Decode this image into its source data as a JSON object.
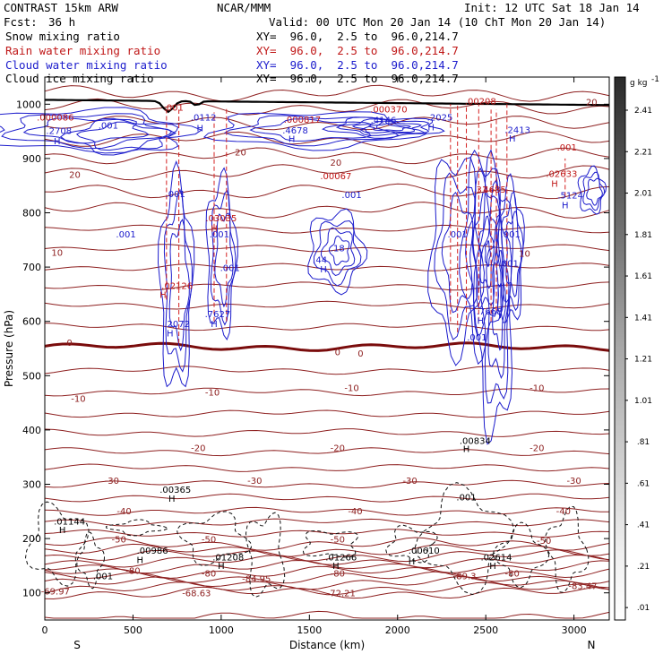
{
  "header": {
    "model": "CONTRAST 15km ARW",
    "org": "NCAR/MMM",
    "init": "Init: 12 UTC Sat 18 Jan 14",
    "fcst_label": "Fcst:",
    "fcst_value": "36 h",
    "valid": "Valid: 00 UTC Mon 20 Jan 14 (10 ChT Mon 20 Jan 14)"
  },
  "fields": [
    {
      "name": "Snow mixing ratio",
      "xy": "XY=  96.0,  2.5 to  96.0,214.7",
      "color": "#000000"
    },
    {
      "name": "Rain water mixing ratio",
      "xy": "XY=  96.0,  2.5 to  96.0,214.7",
      "color": "#c01818"
    },
    {
      "name": "Cloud water mixing ratio",
      "xy": "XY=  96.0,  2.5 to  96.0,214.7",
      "color": "#1c1ccc"
    },
    {
      "name": "Cloud ice mixing ratio",
      "xy": "XY=  96.0,  2.5 to  96.0,214.7",
      "color": "#000000"
    }
  ],
  "chart_data": {
    "type": "heatmap",
    "xlabel": "Distance (km)",
    "ylabel": "Pressure (hPa)",
    "xlim": [
      0,
      3200
    ],
    "ylim": [
      1050,
      50
    ],
    "x_ticks": [
      "0",
      "500",
      "1000",
      "1500",
      "2000",
      "2500",
      "3000"
    ],
    "y_ticks": [
      "100",
      "200",
      "300",
      "400",
      "500",
      "600",
      "700",
      "800",
      "900",
      "1000"
    ],
    "direction_left": "S",
    "direction_right": "N",
    "colorbar": {
      "unit": "g kg",
      "unit_exp": "-1",
      "levels": [
        "2.41",
        "2.21",
        "2.01",
        "1.81",
        "1.61",
        "1.41",
        "1.21",
        "1.01",
        ".81",
        ".61",
        ".41",
        ".21",
        ".01"
      ]
    },
    "temperature_labels": [
      {
        "text": "-69.97",
        "x": 60,
        "p": 97
      },
      {
        "text": "-68.63",
        "x": 860,
        "p": 94
      },
      {
        "text": "-72.21",
        "x": 1680,
        "p": 94
      },
      {
        "text": "-84.95",
        "x": 1200,
        "p": 120
      },
      {
        "text": "-83.47",
        "x": 3050,
        "p": 107
      },
      {
        "text": "-89.3",
        "x": 2380,
        "p": 125
      },
      {
        "text": "-80",
        "x": 500,
        "p": 135
      },
      {
        "text": "-80",
        "x": 930,
        "p": 130
      },
      {
        "text": "-80",
        "x": 1660,
        "p": 130
      },
      {
        "text": "-80",
        "x": 2650,
        "p": 130
      },
      {
        "text": "-50",
        "x": 420,
        "p": 193
      },
      {
        "text": "-50",
        "x": 930,
        "p": 193
      },
      {
        "text": "-50",
        "x": 1660,
        "p": 193
      },
      {
        "text": "-50",
        "x": 2830,
        "p": 190
      },
      {
        "text": "-40",
        "x": 450,
        "p": 245
      },
      {
        "text": "-40",
        "x": 1760,
        "p": 245
      },
      {
        "text": "-40",
        "x": 2940,
        "p": 245
      },
      {
        "text": "-30",
        "x": 380,
        "p": 301
      },
      {
        "text": "-30",
        "x": 1190,
        "p": 301
      },
      {
        "text": "-30",
        "x": 2070,
        "p": 301
      },
      {
        "text": "-30",
        "x": 3000,
        "p": 301
      },
      {
        "text": "-20",
        "x": 870,
        "p": 361
      },
      {
        "text": "-20",
        "x": 1660,
        "p": 361
      },
      {
        "text": "-20",
        "x": 2790,
        "p": 361
      },
      {
        "text": "-10",
        "x": 190,
        "p": 452
      },
      {
        "text": "-10",
        "x": 950,
        "p": 463
      },
      {
        "text": "-10",
        "x": 1740,
        "p": 472
      },
      {
        "text": "-10",
        "x": 2790,
        "p": 472
      },
      {
        "text": "0",
        "x": 140,
        "p": 555
      },
      {
        "text": "0",
        "x": 1660,
        "p": 538
      },
      {
        "text": "0",
        "x": 1790,
        "p": 535
      },
      {
        "text": "10",
        "x": 70,
        "p": 721
      },
      {
        "text": "10",
        "x": 2720,
        "p": 719
      },
      {
        "text": "20",
        "x": 170,
        "p": 864
      },
      {
        "text": "20",
        "x": 1110,
        "p": 906
      },
      {
        "text": "20",
        "x": 1650,
        "p": 887
      },
      {
        "text": "20",
        "x": 3100,
        "p": 998
      }
    ],
    "snow_labels": [
      {
        "text": ".001",
        "x": 330,
        "p": 125
      },
      {
        "text": "H",
        "x": 540,
        "p": 155
      },
      {
        "text": ".00986",
        "x": 610,
        "p": 172
      },
      {
        "text": "H",
        "x": 1000,
        "p": 144
      },
      {
        "text": ".01208",
        "x": 1040,
        "p": 160
      },
      {
        "text": "H",
        "x": 1650,
        "p": 144
      },
      {
        "text": ".01266",
        "x": 1680,
        "p": 160
      },
      {
        "text": "H",
        "x": 2080,
        "p": 152
      },
      {
        "text": ".00610",
        "x": 2150,
        "p": 172
      },
      {
        "text": "H",
        "x": 2540,
        "p": 144
      },
      {
        "text": ".02614",
        "x": 2560,
        "p": 160
      },
      {
        "text": "H",
        "x": 100,
        "p": 210
      },
      {
        "text": ".01144",
        "x": 140,
        "p": 226
      },
      {
        "text": "H",
        "x": 720,
        "p": 268
      },
      {
        "text": ".00365",
        "x": 740,
        "p": 284
      },
      {
        "text": "H",
        "x": 2390,
        "p": 359
      },
      {
        "text": ".00834",
        "x": 2440,
        "p": 374
      },
      {
        "text": ".001",
        "x": 2390,
        "p": 270
      }
    ],
    "cloud_water_labels": [
      {
        "text": "H",
        "x": 710,
        "p": 572
      },
      {
        "text": ".2072",
        "x": 750,
        "p": 590
      },
      {
        "text": "H",
        "x": 960,
        "p": 590
      },
      {
        "text": ".7627",
        "x": 980,
        "p": 608
      },
      {
        "text": "H",
        "x": 1580,
        "p": 690
      },
      {
        "text": ".44",
        "x": 1560,
        "p": 708
      },
      {
        "text": ".18",
        "x": 1660,
        "p": 729
      },
      {
        "text": ".001",
        "x": 460,
        "p": 755
      },
      {
        "text": ".001",
        "x": 990,
        "p": 755
      },
      {
        "text": ".001",
        "x": 2340,
        "p": 755
      },
      {
        "text": ".001",
        "x": 2640,
        "p": 755
      },
      {
        "text": ".001",
        "x": 2630,
        "p": 701
      },
      {
        "text": ".001",
        "x": 1050,
        "p": 693
      },
      {
        "text": ".001",
        "x": 740,
        "p": 829
      },
      {
        "text": ".001",
        "x": 1740,
        "p": 827
      },
      {
        "text": ".001",
        "x": 2450,
        "p": 565
      },
      {
        "text": "H",
        "x": 2470,
        "p": 595
      },
      {
        "text": ".7668",
        "x": 2520,
        "p": 613
      },
      {
        "text": "H",
        "x": 2950,
        "p": 808
      },
      {
        "text": ".5124",
        "x": 2980,
        "p": 826
      },
      {
        "text": "H",
        "x": 70,
        "p": 926
      },
      {
        "text": ".2708",
        "x": 80,
        "p": 945
      },
      {
        "text": ".001",
        "x": 360,
        "p": 955
      },
      {
        "text": "H",
        "x": 1400,
        "p": 930
      },
      {
        "text": ".4678",
        "x": 1420,
        "p": 946
      },
      {
        "text": ".4146",
        "x": 1920,
        "p": 965
      },
      {
        "text": "H",
        "x": 2190,
        "p": 952
      },
      {
        "text": ".2025",
        "x": 2240,
        "p": 970
      },
      {
        "text": "H",
        "x": 2650,
        "p": 931
      },
      {
        "text": ".2413",
        "x": 2680,
        "p": 947
      },
      {
        "text": "H",
        "x": 880,
        "p": 950
      },
      {
        "text": ".0112",
        "x": 900,
        "p": 970
      }
    ],
    "rain_labels": [
      {
        "text": "H",
        "x": 670,
        "p": 643
      },
      {
        "text": ".02126",
        "x": 750,
        "p": 660
      },
      {
        "text": "H",
        "x": 960,
        "p": 765
      },
      {
        "text": ".03035",
        "x": 1000,
        "p": 784
      },
      {
        "text": ".00067",
        "x": 1650,
        "p": 862
      },
      {
        "text": ".31",
        "x": 2470,
        "p": 837
      },
      {
        "text": "4685",
        "x": 2550,
        "p": 837
      },
      {
        "text": "H",
        "x": 2890,
        "p": 848
      },
      {
        "text": ".02633",
        "x": 2930,
        "p": 866
      },
      {
        "text": ".001",
        "x": 2960,
        "p": 915
      },
      {
        "text": ".000086",
        "x": 60,
        "p": 970
      },
      {
        "text": ".000817",
        "x": 1460,
        "p": 966
      },
      {
        "text": ".000370",
        "x": 1950,
        "p": 985
      },
      {
        "text": ".001",
        "x": 730,
        "p": 988
      },
      {
        "text": ".00208",
        "x": 2470,
        "p": 1000
      }
    ]
  }
}
